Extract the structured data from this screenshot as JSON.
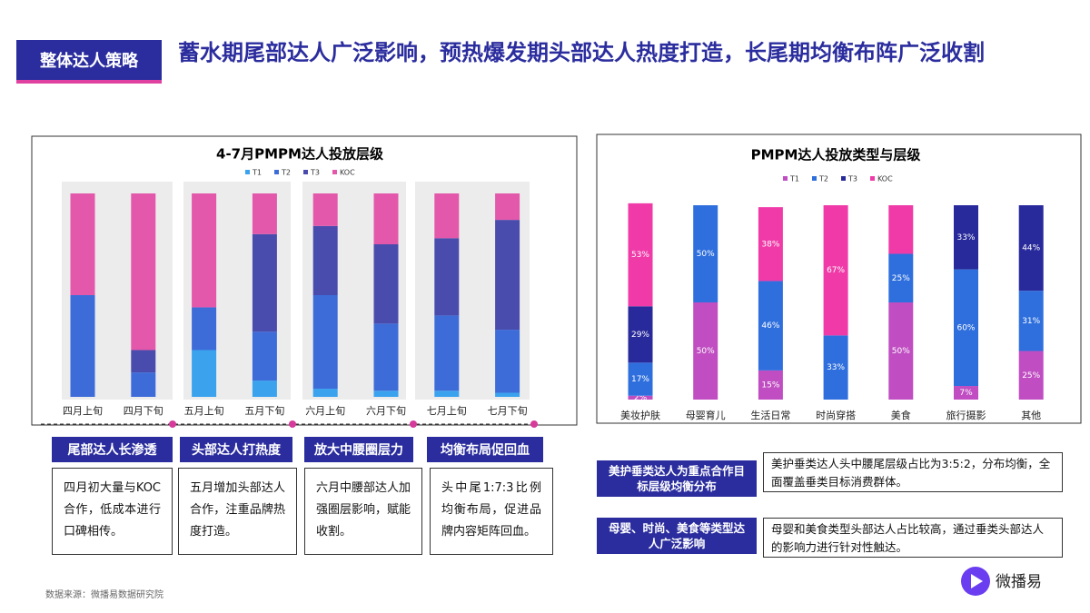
{
  "header": {
    "tag": "整体达人策略",
    "title": "蓄水期尾部达人广泛影响，预热爆发期头部达人热度打造，长尾期均衡布阵广泛收割"
  },
  "chart_data": [
    {
      "type": "bar",
      "stacked": true,
      "title": "4-7月PMPM达人投放层级",
      "categories": [
        "四月上旬",
        "四月下旬",
        "五月上旬",
        "五月下旬",
        "六月上旬",
        "六月下旬",
        "七月上旬",
        "七月下旬"
      ],
      "ylim": [
        0,
        100
      ],
      "series": [
        {
          "name": "T1",
          "color": "#3ba2ee",
          "values": [
            0,
            0,
            23,
            8,
            4,
            3,
            3,
            2
          ]
        },
        {
          "name": "T2",
          "color": "#3d6cd9",
          "values": [
            50,
            12,
            21,
            24,
            46,
            33,
            37,
            31
          ]
        },
        {
          "name": "T3",
          "color": "#4a4cad",
          "values": [
            0,
            11,
            0,
            48,
            34,
            39,
            38,
            54
          ]
        },
        {
          "name": "KOC",
          "color": "#e358aa",
          "values": [
            50,
            77,
            56,
            20,
            16,
            25,
            22,
            13
          ]
        }
      ]
    },
    {
      "type": "bar",
      "stacked": true,
      "title": "PMPM达人投放类型与层级",
      "categories": [
        "美妆护肤",
        "母婴育儿",
        "生活日常",
        "时尚穿搭",
        "美食",
        "旅行摄影",
        "其他"
      ],
      "ylim": [
        0,
        100
      ],
      "series": [
        {
          "name": "T1",
          "color": "#c04ec2",
          "values": [
            2,
            50,
            15,
            0,
            50,
            7,
            25
          ],
          "value_labels": [
            "2%",
            "50%",
            "15%",
            null,
            "50%",
            "7%",
            "25%"
          ]
        },
        {
          "name": "T2",
          "color": "#2f6fdd",
          "values": [
            17,
            50,
            46,
            33,
            25,
            60,
            31
          ],
          "value_labels": [
            "17%",
            "50%",
            "46%",
            "33%",
            "25%",
            "60%",
            "31%"
          ]
        },
        {
          "name": "T3",
          "color": "#28299a",
          "values": [
            29,
            0,
            0,
            0,
            0,
            33,
            44
          ],
          "value_labels": [
            "29%",
            null,
            null,
            null,
            null,
            "33%",
            "44%"
          ]
        },
        {
          "name": "KOC",
          "color": "#f03aa8",
          "values": [
            53,
            0,
            38,
            67,
            25,
            0,
            0
          ],
          "value_labels": [
            "53%",
            null,
            "38%",
            "67%",
            null,
            null,
            null
          ]
        }
      ]
    }
  ],
  "phases": [
    {
      "title": "尾部达人长渗透",
      "text": "四月初大量与KOC合作，低成本进行口碑相传。"
    },
    {
      "title": "头部达人打热度",
      "text": "五月增加头部达人合作，注重品牌热度打造。"
    },
    {
      "title": "放大中腰圈层力",
      "text": "六月中腰部达人加强圈层影响，赋能收割。"
    },
    {
      "title": "均衡布局促回血",
      "text": "头中尾1:7:3比例均衡布局，促进品牌内容矩阵回血。"
    }
  ],
  "insights": [
    {
      "label": "美护垂类达人为重点合作目标层级均衡分布",
      "text": "美护垂类达人头中腰尾层级占比为3:5:2，分布均衡，全面覆盖垂类目标消费群体。"
    },
    {
      "label": "母婴、时尚、美食等类型达人广泛影响",
      "text": "母婴和美食类型头部达人占比较高，通过垂类头部达人的影响力进行针对性触达。"
    }
  ],
  "source": "数据来源：微播易数据研究院",
  "logo": "微播易"
}
